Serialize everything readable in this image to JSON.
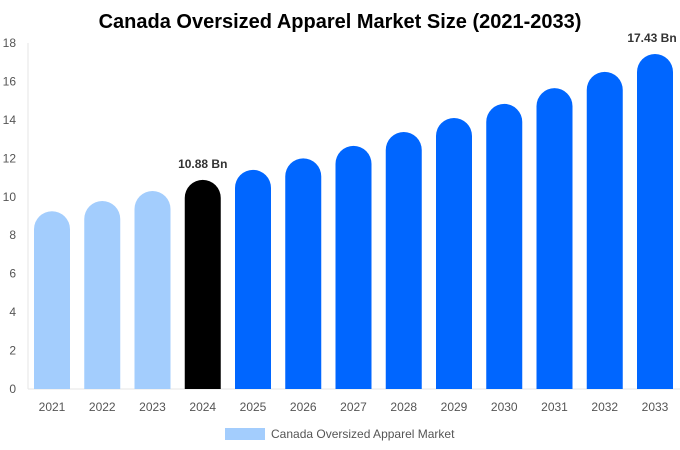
{
  "chart_data": {
    "type": "bar",
    "title": "Canada Oversized Apparel Market Size (2021-2033)",
    "xlabel": "",
    "ylabel": "",
    "ylim": [
      0,
      18
    ],
    "yticks": [
      0,
      2,
      4,
      6,
      8,
      10,
      12,
      14,
      16,
      18
    ],
    "grid": false,
    "legend_placement": "bottom",
    "categories": [
      "2021",
      "2022",
      "2023",
      "2024",
      "2025",
      "2026",
      "2027",
      "2028",
      "2029",
      "2030",
      "2031",
      "2032",
      "2033"
    ],
    "series": [
      {
        "name": "Canada Oversized Apparel Market",
        "values": [
          9.25,
          9.78,
          10.3,
          10.88,
          11.4,
          12.0,
          12.65,
          13.37,
          14.1,
          14.83,
          15.65,
          16.5,
          17.43
        ]
      }
    ],
    "bar_colors": [
      "#a3cdfd",
      "#a3cdfd",
      "#a3cdfd",
      "#000000",
      "#0066ff",
      "#0066ff",
      "#0066ff",
      "#0066ff",
      "#0066ff",
      "#0066ff",
      "#0066ff",
      "#0066ff",
      "#0066ff"
    ],
    "legend_color": "#a3cdfd",
    "data_labels": [
      {
        "category": "2024",
        "text": "10.88 Bn"
      },
      {
        "category": "2033",
        "text": "17.43 Bn"
      }
    ]
  }
}
